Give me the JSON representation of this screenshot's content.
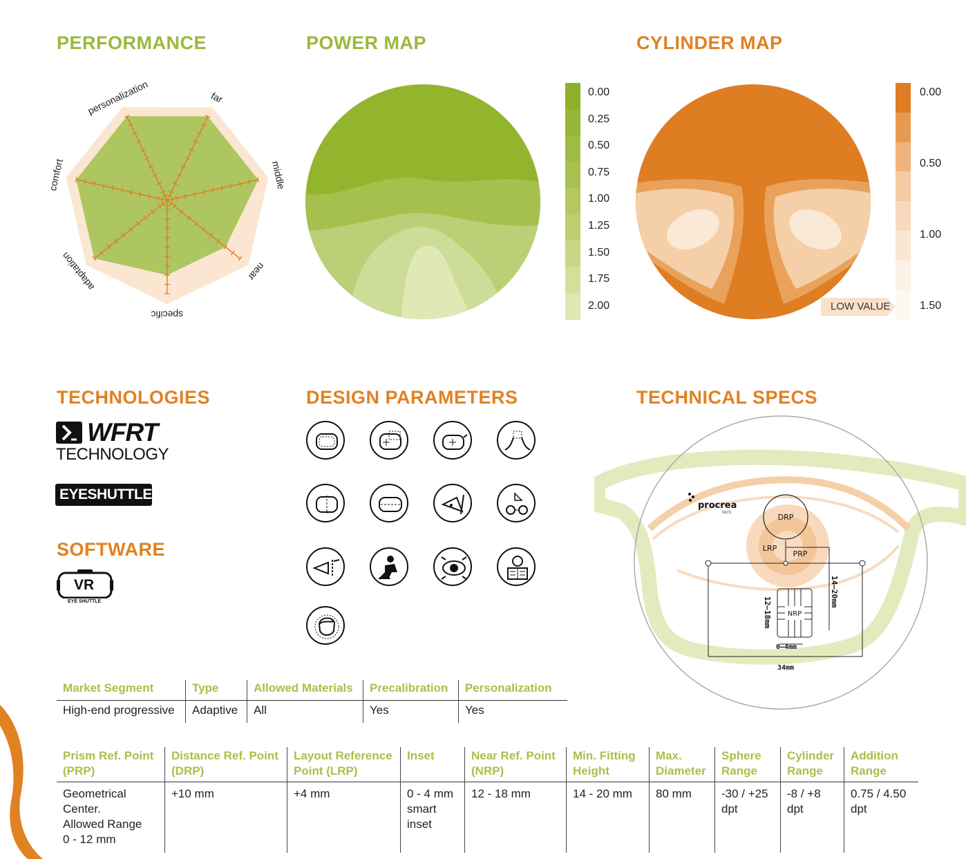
{
  "titles": {
    "performance": "PERFORMANCE",
    "power_map": "POWER MAP",
    "cylinder_map": "CYLINDER MAP",
    "technologies": "TECHNOLOGIES",
    "design_parameters": "DESIGN PARAMETERS",
    "technical_specs": "TECHNICAL SPECS",
    "software": "SOFTWARE"
  },
  "colors": {
    "green": "#9bb83a",
    "orange": "#e08122",
    "peach": "#f6d3b2"
  },
  "performance_labels": [
    "far",
    "middle",
    "near",
    "specific",
    "adaptation",
    "comfort",
    "personalization"
  ],
  "chart_data": [
    {
      "type": "radar",
      "axes": [
        "far",
        "middle",
        "near",
        "specific",
        "adaptation",
        "comfort",
        "personalization"
      ],
      "values": [
        5,
        5,
        4,
        4,
        5,
        5,
        5
      ],
      "max": 5
    }
  ],
  "power_map": {
    "legend": [
      "0.00",
      "0.25",
      "0.50",
      "0.75",
      "1.00",
      "1.25",
      "1.50",
      "1.75",
      "2.00"
    ]
  },
  "cylinder_map": {
    "legend": [
      "0.00",
      "0.50",
      "1.00",
      "1.50"
    ],
    "low_value": "LOW VALUE"
  },
  "technologies": {
    "wfrt_name": "WFRT",
    "wfrt_sub": "TECHNOLOGY",
    "eyeshuttle": "EYESHUTTLE"
  },
  "software": {
    "vr": "VR",
    "vr_sub": "EYE SHUTTLE"
  },
  "design_parameter_icons": [
    "frame-shape-icon",
    "fitting-cross-icon",
    "pupil-distance-icon",
    "nose-bridge-icon",
    "monocular-frame-icon",
    "wrap-frame-icon",
    "pantoscopic-tilt-icon",
    "reading-distance-icon",
    "eye-distance-icon",
    "work-activity-icon",
    "eye-movement-icon",
    "reading-newspaper-icon",
    "head-rotation-icon"
  ],
  "technical_specs": {
    "brand": "procrea",
    "brand_sub": "tech",
    "drp": "DRP",
    "lrp": "LRP",
    "prp": "PRP",
    "nrp": "NRP",
    "height_14_20": "14–20mm",
    "height_12_18": "12–18mm",
    "inset": "0–4mm",
    "width": "34mm"
  },
  "table1": {
    "headers": [
      "Market Segment",
      "Type",
      "Allowed Materials",
      "Precalibration",
      "Personalization"
    ],
    "row": [
      "High-end progressive",
      "Adaptive",
      "All",
      "Yes",
      "Yes"
    ]
  },
  "table2": {
    "headers": [
      [
        "Prism Ref. Point",
        "(PRP)"
      ],
      [
        "Distance Ref. Point",
        "(DRP)"
      ],
      [
        "Layout Reference",
        "Point (LRP)"
      ],
      [
        "Inset",
        ""
      ],
      [
        "Near Ref. Point",
        "(NRP)"
      ],
      [
        "Min. Fitting",
        "Height"
      ],
      [
        "Max.",
        "Diameter"
      ],
      [
        "Sphere",
        "Range"
      ],
      [
        "Cylinder",
        "Range"
      ],
      [
        "Addition",
        "Range"
      ]
    ],
    "row": [
      [
        "Geometrical",
        "Center.",
        "Allowed Range",
        "0 - 12 mm"
      ],
      [
        "+10 mm"
      ],
      [
        "+4 mm"
      ],
      [
        "0 - 4 mm",
        "smart",
        "inset"
      ],
      [
        "12 - 18 mm"
      ],
      [
        "14 - 20 mm"
      ],
      [
        "80 mm"
      ],
      [
        "-30 / +25",
        "dpt"
      ],
      [
        "-8 / +8",
        "dpt"
      ],
      [
        "0.75 / 4.50",
        "dpt"
      ]
    ]
  }
}
